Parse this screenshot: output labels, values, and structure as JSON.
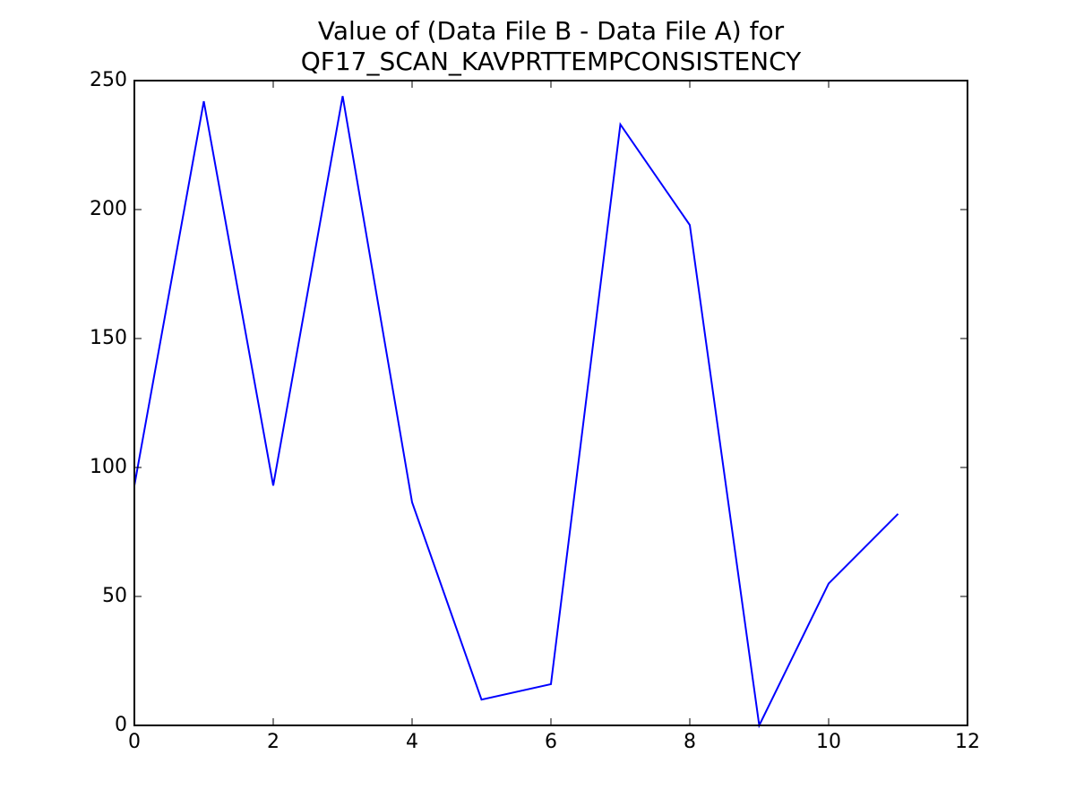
{
  "chart_data": {
    "type": "line",
    "title": [
      "Value of (Data File B - Data File A) for",
      "QF17_SCAN_KAVPRTTEMPCONSISTENCY"
    ],
    "x": [
      0,
      1,
      2,
      3,
      4,
      5,
      6,
      7,
      8,
      9,
      10,
      11
    ],
    "series": [
      {
        "color": "#0000ff",
        "values": [
          93,
          242,
          93,
          244,
          86.5,
          10,
          16,
          233,
          194,
          0,
          55,
          82
        ]
      }
    ],
    "xlim": [
      0,
      12
    ],
    "xticks": [
      0,
      2,
      4,
      6,
      8,
      10,
      12
    ],
    "ylim": [
      0,
      250
    ],
    "yticks": [
      0,
      50,
      100,
      150,
      200,
      250
    ],
    "grid": false
  }
}
